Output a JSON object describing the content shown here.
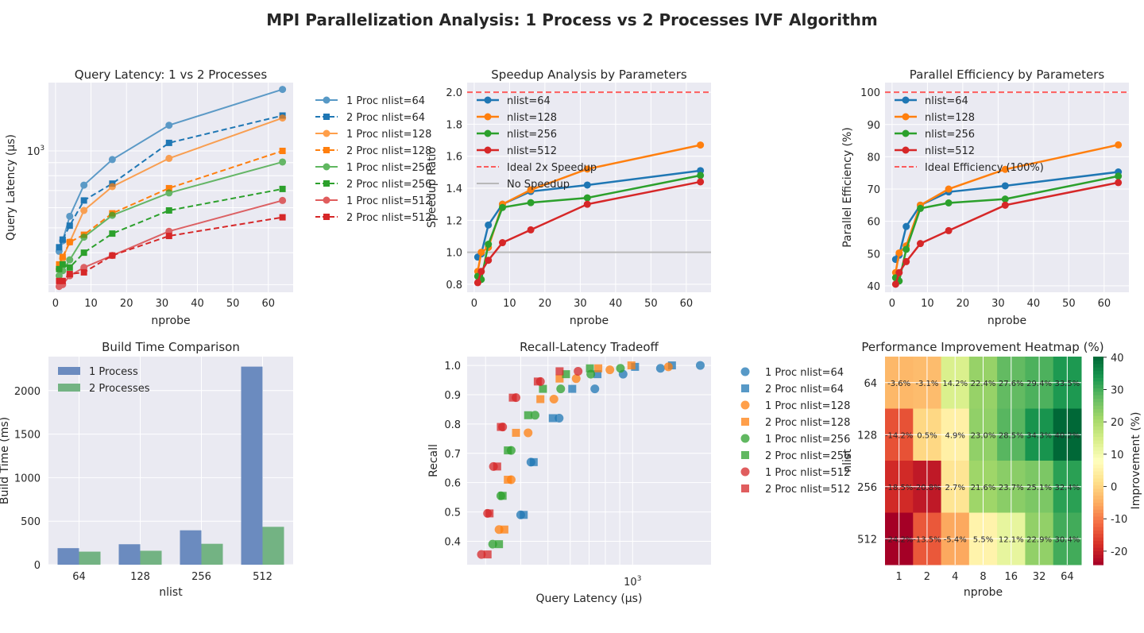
{
  "figure": {
    "title": "MPI Parallelization Analysis: 1 Process vs 2 Processes IVF Algorithm"
  },
  "colors": {
    "blue": "#1f77b4",
    "orange": "#ff7f0e",
    "green": "#2ca02c",
    "red": "#d62728",
    "ideal": "#ff4444",
    "nospeed": "#b0b0b0",
    "bar1": "#6b8bbf",
    "bar2": "#73b383",
    "panel_bg": "#eaeaf2"
  },
  "chart_data": [
    {
      "type": "line",
      "title": "Query Latency: 1 vs 2 Processes",
      "xlabel": "nprobe",
      "ylabel": "Query Latency (μs)",
      "yscale": "log",
      "xlim": [
        -2,
        67
      ],
      "xticks": [
        0,
        10,
        20,
        30,
        40,
        50,
        60
      ],
      "ytick_labels": [
        {
          "value": 1000,
          "label": "10^3"
        }
      ],
      "legend_placement": "outside-right",
      "x": [
        1,
        2,
        4,
        8,
        16,
        32,
        64
      ],
      "series": [
        {
          "name": "1 Proc nlist=64",
          "color": "blue",
          "dash": false,
          "marker": "circle",
          "values": [
            405,
            445,
            555,
            735,
            925,
            1260,
            1740
          ]
        },
        {
          "name": "2 Proc nlist=64",
          "color": "blue",
          "dash": true,
          "marker": "square",
          "values": [
            420,
            450,
            510,
            640,
            745,
            1075,
            1375
          ]
        },
        {
          "name": "1 Proc nlist=128",
          "color": "orange",
          "dash": false,
          "marker": "circle",
          "values": [
            345,
            380,
            440,
            585,
            725,
            935,
            1345
          ]
        },
        {
          "name": "2 Proc nlist=128",
          "color": "orange",
          "dash": true,
          "marker": "square",
          "values": [
            360,
            385,
            440,
            470,
            570,
            715,
            1000
          ]
        },
        {
          "name": "1 Proc nlist=256",
          "color": "green",
          "dash": false,
          "marker": "circle",
          "values": [
            325,
            340,
            375,
            460,
            560,
            685,
            905
          ]
        },
        {
          "name": "2 Proc nlist=256",
          "color": "green",
          "dash": true,
          "marker": "square",
          "values": [
            345,
            360,
            350,
            400,
            475,
            585,
            710
          ]
        },
        {
          "name": "1 Proc nlist=512",
          "color": "red",
          "dash": false,
          "marker": "circle",
          "values": [
            295,
            300,
            325,
            350,
            390,
            485,
            640
          ]
        },
        {
          "name": "2 Proc nlist=512",
          "color": "red",
          "dash": true,
          "marker": "square",
          "values": [
            310,
            310,
            330,
            335,
            390,
            465,
            550
          ]
        }
      ]
    },
    {
      "type": "line",
      "title": "Speedup Analysis by Parameters",
      "xlabel": "nprobe",
      "ylabel": "Speedup Ratio",
      "xlim": [
        -2,
        67
      ],
      "ylim": [
        0.75,
        2.06
      ],
      "xticks": [
        0,
        10,
        20,
        30,
        40,
        50,
        60
      ],
      "yticks": [
        0.8,
        1.0,
        1.2,
        1.4,
        1.6,
        1.8,
        2.0
      ],
      "legend_placement": "upper-left",
      "x": [
        1,
        2,
        4,
        8,
        16,
        32,
        64
      ],
      "series": [
        {
          "name": "nlist=64",
          "color": "blue",
          "values": [
            0.97,
            0.99,
            1.17,
            1.3,
            1.38,
            1.42,
            1.51
          ]
        },
        {
          "name": "nlist=128",
          "color": "orange",
          "values": [
            0.88,
            1.0,
            1.03,
            1.3,
            1.39,
            1.52,
            1.67
          ]
        },
        {
          "name": "nlist=256",
          "color": "green",
          "values": [
            0.85,
            0.83,
            1.05,
            1.28,
            1.31,
            1.34,
            1.48
          ]
        },
        {
          "name": "nlist=512",
          "color": "red",
          "values": [
            0.81,
            0.88,
            0.95,
            1.06,
            1.14,
            1.3,
            1.44
          ]
        }
      ],
      "reference_lines": [
        {
          "name": "Ideal 2x Speedup",
          "y": 2.0,
          "color": "ideal",
          "dash": true
        },
        {
          "name": "No Speedup",
          "y": 1.0,
          "color": "nospeed",
          "dash": false
        }
      ]
    },
    {
      "type": "line",
      "title": "Parallel Efficiency by Parameters",
      "xlabel": "nprobe",
      "ylabel": "Parallel Efficiency (%)",
      "xlim": [
        -2,
        67
      ],
      "ylim": [
        38,
        103
      ],
      "xticks": [
        0,
        10,
        20,
        30,
        40,
        50,
        60
      ],
      "yticks": [
        40,
        50,
        60,
        70,
        80,
        90,
        100
      ],
      "legend_placement": "upper-left",
      "x": [
        1,
        2,
        4,
        8,
        16,
        32,
        64
      ],
      "series": [
        {
          "name": "nlist=64",
          "color": "blue",
          "values": [
            48.2,
            49.5,
            58.4,
            65,
            69.1,
            71,
            75.3
          ]
        },
        {
          "name": "nlist=128",
          "color": "orange",
          "values": [
            44.1,
            50.2,
            52.4,
            65,
            70,
            76.1,
            83.7
          ]
        },
        {
          "name": "nlist=256",
          "color": "green",
          "values": [
            42.5,
            41.5,
            51.3,
            64,
            65.7,
            66.9,
            74
          ]
        },
        {
          "name": "nlist=512",
          "color": "red",
          "values": [
            40.5,
            44.1,
            47.5,
            53.1,
            57.1,
            65,
            72
          ]
        }
      ],
      "reference_lines": [
        {
          "name": "Ideal Efficiency (100%)",
          "y": 100,
          "color": "ideal",
          "dash": true
        }
      ]
    },
    {
      "type": "bar",
      "title": "Build Time Comparison",
      "xlabel": "nlist",
      "ylabel": "Build Time (ms)",
      "ylim": [
        0,
        2390
      ],
      "yticks": [
        0,
        500,
        1000,
        1500,
        2000
      ],
      "legend_placement": "upper-left",
      "categories": [
        "64",
        "128",
        "256",
        "512"
      ],
      "series": [
        {
          "name": "1 Process",
          "color": "bar1",
          "values": [
            190,
            235,
            395,
            2275
          ]
        },
        {
          "name": "2 Processes",
          "color": "bar2",
          "values": [
            150,
            160,
            240,
            435
          ]
        }
      ]
    },
    {
      "type": "scatter",
      "title": "Recall-Latency Tradeoff",
      "xlabel": "Query Latency (μs)",
      "ylabel": "Recall",
      "xscale": "log",
      "xlim": [
        258,
        1900
      ],
      "ylim": [
        0.32,
        1.03
      ],
      "xtick_labels": [
        {
          "value": 1000,
          "label": "10^3"
        }
      ],
      "yticks": [
        0.4,
        0.5,
        0.6,
        0.7,
        0.8,
        0.9,
        1.0
      ],
      "legend_placement": "outside-right",
      "series": [
        {
          "name": "1 Proc nlist=64",
          "color": "blue",
          "marker": "circle",
          "x": [
            400,
            435,
            548,
            734,
            925,
            1256,
            1740
          ],
          "y": [
            0.49,
            0.67,
            0.82,
            0.92,
            0.97,
            0.99,
            1.0
          ]
        },
        {
          "name": "2 Proc nlist=64",
          "color": "blue",
          "marker": "square",
          "x": [
            410,
            445,
            520,
            610,
            750,
            1020,
            1380
          ],
          "y": [
            0.49,
            0.67,
            0.82,
            0.92,
            0.97,
            0.995,
            1.0
          ]
        },
        {
          "name": "1 Proc nlist=128",
          "color": "orange",
          "marker": "circle",
          "x": [
            335,
            370,
            425,
            525,
            630,
            830,
            1340
          ],
          "y": [
            0.44,
            0.61,
            0.77,
            0.885,
            0.955,
            0.985,
            0.995
          ]
        },
        {
          "name": "2 Proc nlist=128",
          "color": "orange",
          "marker": "square",
          "x": [
            350,
            360,
            385,
            470,
            550,
            755,
            990
          ],
          "y": [
            0.44,
            0.61,
            0.77,
            0.885,
            0.955,
            0.99,
            1.0
          ]
        },
        {
          "name": "1 Proc nlist=256",
          "color": "green",
          "marker": "circle",
          "x": [
            318,
            340,
            370,
            450,
            555,
            710,
            905
          ],
          "y": [
            0.39,
            0.555,
            0.71,
            0.83,
            0.92,
            0.97,
            0.99
          ]
        },
        {
          "name": "2 Proc nlist=256",
          "color": "green",
          "marker": "square",
          "x": [
            335,
            345,
            360,
            425,
            480,
            580,
            705
          ],
          "y": [
            0.39,
            0.555,
            0.71,
            0.83,
            0.92,
            0.97,
            0.99
          ]
        },
        {
          "name": "1 Proc nlist=512",
          "color": "red",
          "marker": "circle",
          "x": [
            290,
            305,
            320,
            345,
            385,
            470,
            640
          ],
          "y": [
            0.355,
            0.495,
            0.655,
            0.79,
            0.89,
            0.945,
            0.98
          ]
        },
        {
          "name": "2 Proc nlist=512",
          "color": "red",
          "marker": "square",
          "x": [
            305,
            310,
            330,
            340,
            375,
            460,
            550
          ],
          "y": [
            0.355,
            0.495,
            0.655,
            0.79,
            0.89,
            0.945,
            0.98
          ]
        }
      ]
    },
    {
      "type": "heatmap",
      "title": "Performance Improvement Heatmap (%)",
      "xlabel": "nprobe",
      "ylabel": "nlist",
      "x_categories": [
        "1",
        "2",
        "4",
        "8",
        "16",
        "32",
        "64"
      ],
      "y_categories": [
        "64",
        "128",
        "256",
        "512"
      ],
      "colorbar_label": "Improvement (%)",
      "colorbar_range": [
        -24.2,
        40.2
      ],
      "colorbar_ticks": [
        -20,
        -10,
        0,
        10,
        20,
        30,
        40
      ],
      "values": [
        [
          -3.6,
          -3.1,
          14.2,
          22.4,
          27.6,
          29.4,
          33.5
        ],
        [
          -14.2,
          0.5,
          4.9,
          23.0,
          28.5,
          34.3,
          40.2
        ],
        [
          -18.5,
          -20.8,
          2.7,
          21.6,
          23.7,
          25.1,
          32.4
        ],
        [
          -24.2,
          -13.5,
          -5.4,
          5.5,
          12.1,
          22.9,
          30.4
        ]
      ],
      "cell_labels": [
        [
          "-3.6%",
          "-3.1%",
          "14.2%",
          "22.4%",
          "27.6%",
          "29.4%",
          "33.5%"
        ],
        [
          "-14.2%",
          "0.5%",
          "4.9%",
          "23.0%",
          "28.5%",
          "34.3%",
          "40.2%"
        ],
        [
          "-18.5%",
          "-20.8%",
          "2.7%",
          "21.6%",
          "23.7%",
          "25.1%",
          "32.4%"
        ],
        [
          "-24.2%",
          "-13.5%",
          "-5.4%",
          "5.5%",
          "12.1%",
          "22.9%",
          "30.4%"
        ]
      ]
    }
  ]
}
